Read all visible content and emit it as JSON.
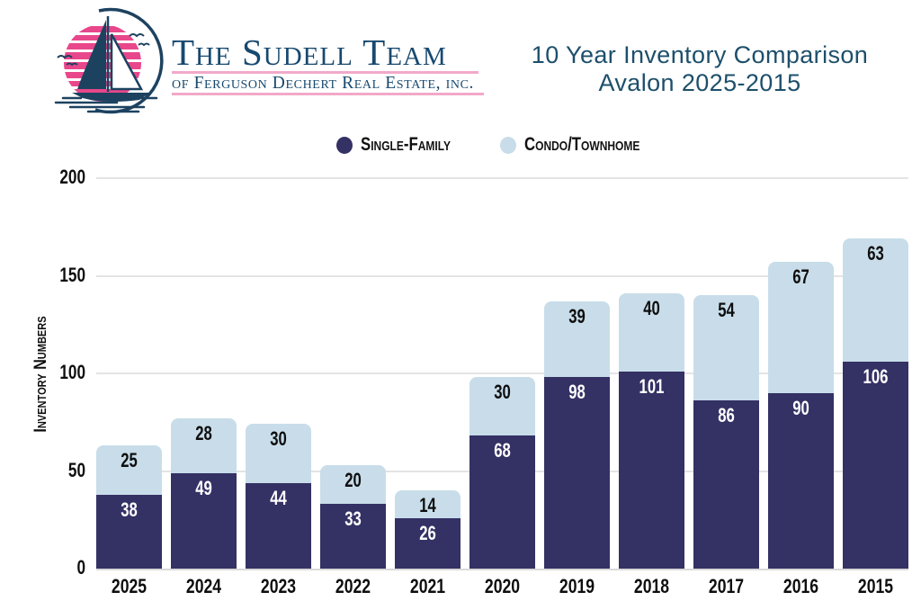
{
  "header": {
    "brand_line1": "The Sudell Team",
    "brand_line2": "of Ferguson Dechert Real Estate, inc.",
    "title_line1": "10 Year Inventory Comparison",
    "title_line2": "Avalon 2025-2015"
  },
  "legend": [
    {
      "label": "Single-Family",
      "color": "#343165"
    },
    {
      "label": "Condo/Townhome",
      "color": "#c8dde9"
    }
  ],
  "chart_data": {
    "type": "bar",
    "stacked": true,
    "title": "10 Year Inventory Comparison Avalon 2025-2015",
    "categories": [
      "2025",
      "2024",
      "2023",
      "2022",
      "2021",
      "2020",
      "2019",
      "2018",
      "2017",
      "2016",
      "2015"
    ],
    "series": [
      {
        "name": "Single-Family",
        "color": "#343165",
        "values": [
          38,
          49,
          44,
          33,
          26,
          68,
          98,
          101,
          86,
          90,
          106
        ]
      },
      {
        "name": "Condo/Townhome",
        "color": "#c8dde9",
        "values": [
          25,
          28,
          30,
          20,
          14,
          30,
          39,
          40,
          54,
          67,
          63
        ]
      }
    ],
    "xlabel": "",
    "ylabel": "Inventory Numbers",
    "yticks": [
      0,
      50,
      100,
      150,
      200
    ],
    "ylim": [
      0,
      200
    ],
    "grid": true,
    "legend_position": "top"
  },
  "colors": {
    "single_family": "#343165",
    "condo_townhome": "#c8dde9",
    "title_text": "#1d4f6b",
    "logo_navy": "#1d4260",
    "logo_pink": "#e8478b",
    "underline_pink": "#f2a9c9",
    "gridline": "#e4e4e4",
    "background": "#ffffff"
  }
}
